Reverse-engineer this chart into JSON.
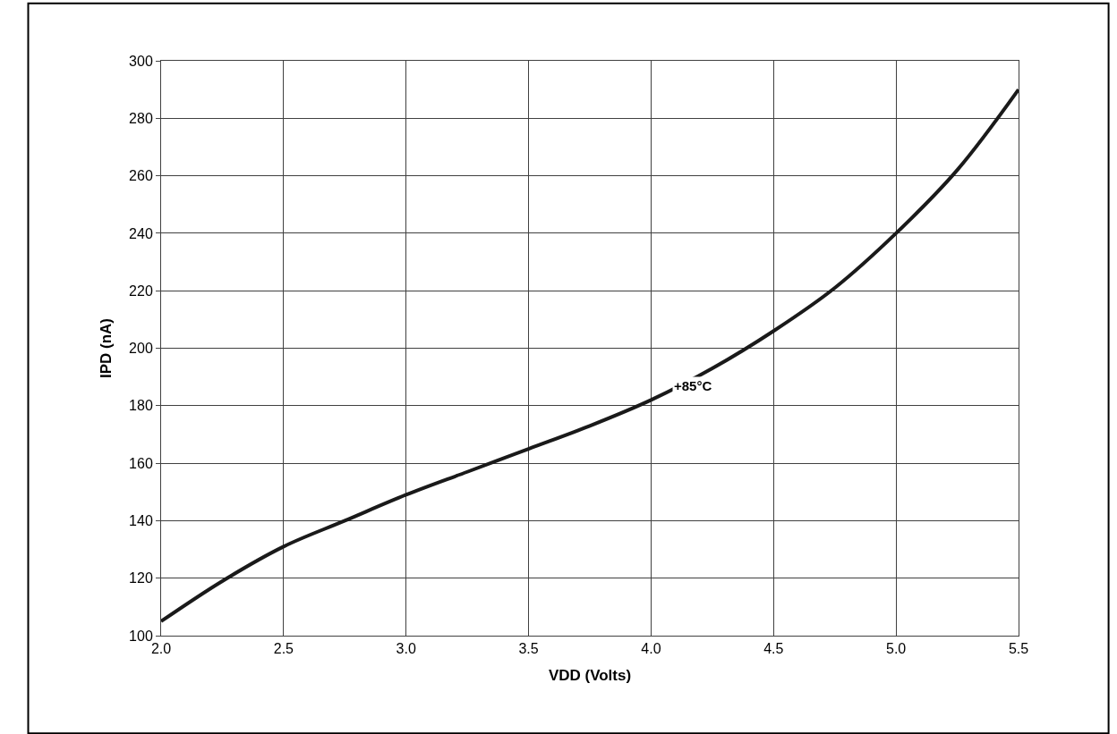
{
  "chart_data": {
    "type": "line",
    "xlabel": "VDD (Volts)",
    "ylabel": "IPD (nA)",
    "x": [
      2.0,
      2.25,
      2.5,
      2.75,
      3.0,
      3.25,
      3.5,
      3.75,
      4.0,
      4.25,
      4.5,
      4.75,
      5.0,
      5.25,
      5.5
    ],
    "series": [
      {
        "color": "#1a1a1a",
        "values": [
          105,
          119,
          131,
          140,
          149,
          157,
          165,
          173,
          182,
          193,
          206,
          221,
          240,
          262,
          290
        ]
      }
    ],
    "annotations": [
      {
        "text": "+85°C",
        "x": 4.17,
        "y": 187
      }
    ],
    "xlim": [
      2.0,
      5.5
    ],
    "xticks": [
      {
        "value": 2.0,
        "label": "2.0"
      },
      2.5,
      {
        "value": 3.0,
        "label": "3.0"
      },
      3.5,
      {
        "value": 4.0,
        "label": "4.0"
      },
      4.5,
      {
        "value": 5.0,
        "label": "5.0"
      },
      5.5
    ],
    "ylim": [
      100,
      300
    ],
    "yticks": [
      100,
      120,
      140,
      160,
      180,
      200,
      220,
      240,
      260,
      280,
      300
    ],
    "grid": true,
    "legend": false,
    "marker": "none",
    "line_style": "solid"
  }
}
